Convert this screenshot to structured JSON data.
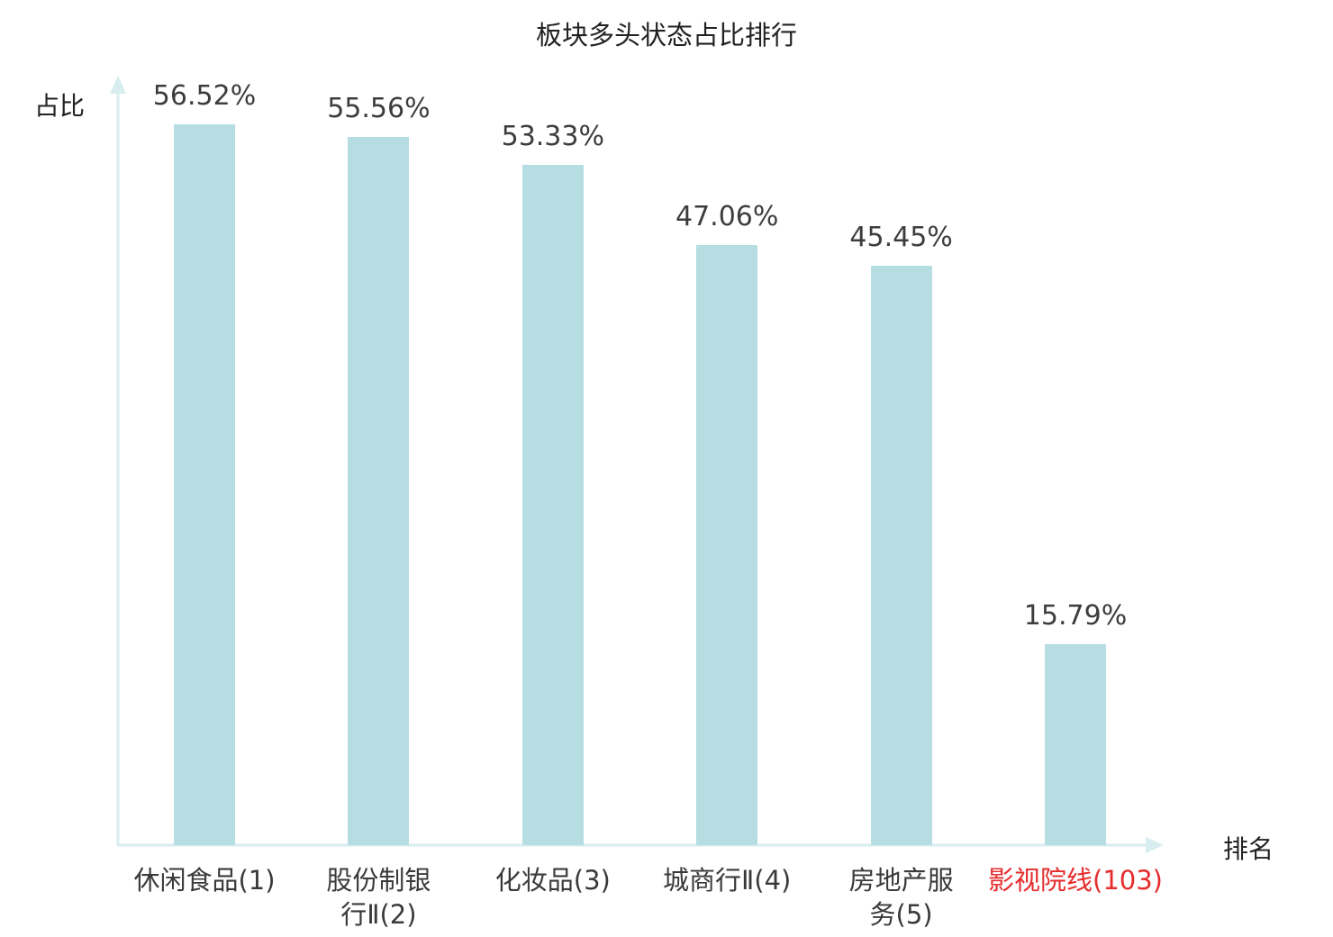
{
  "chart_data": {
    "type": "bar",
    "title": "板块多头状态占比排行",
    "xlabel": "排名",
    "ylabel": "占比",
    "categories": [
      "休闲食品(1)",
      "股份制银\n行Ⅱ(2)",
      "化妆品(3)",
      "城商行Ⅱ(4)",
      "房地产服\n务(5)",
      "影视院线(103)"
    ],
    "values": [
      56.52,
      55.56,
      53.33,
      47.06,
      45.45,
      15.79
    ],
    "labels": [
      "56.52%",
      "55.56%",
      "53.33%",
      "47.06%",
      "45.45%",
      "15.79%"
    ],
    "ylim": [
      0,
      60
    ],
    "grid": false,
    "legend": "none",
    "bar_color": "#b5dde2",
    "axis_color": "#d7edef",
    "value_label_color": "#3d3d3d",
    "category_label_color": "#3a3a3a",
    "highlight_index": 5,
    "highlight_color": "#e62c2c"
  }
}
